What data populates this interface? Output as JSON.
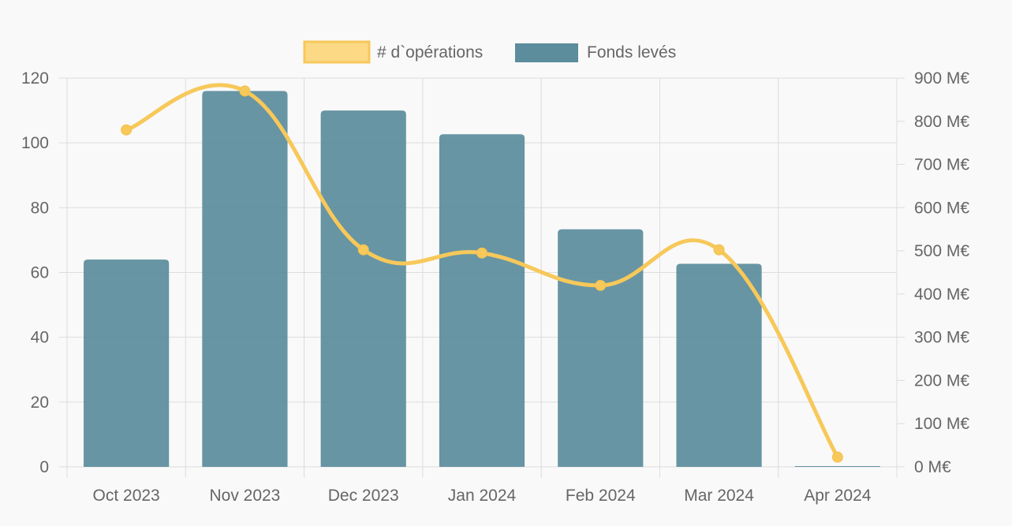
{
  "chart_data": {
    "type": "bar",
    "categories": [
      "Oct 2023",
      "Nov 2023",
      "Dec 2023",
      "Jan 2024",
      "Feb 2024",
      "Mar 2024",
      "Apr 2024"
    ],
    "series": [
      {
        "name": "# d`opérations",
        "type": "line",
        "axis": "left",
        "color": "#f7c85a",
        "values": [
          104,
          116,
          67,
          66,
          56,
          67,
          3
        ]
      },
      {
        "name": "Fonds levés",
        "type": "bar",
        "axis": "right",
        "color": "#5b8d9c",
        "values": [
          480,
          870,
          825,
          770,
          550,
          470,
          1
        ]
      }
    ],
    "y_left": {
      "ylim": [
        0,
        120
      ],
      "ticks": [
        "0",
        "20",
        "40",
        "60",
        "80",
        "100",
        "120"
      ]
    },
    "y_right": {
      "ylim": [
        0,
        900
      ],
      "ticks": [
        "0 M€",
        "100 M€",
        "200 M€",
        "300 M€",
        "400 M€",
        "500 M€",
        "600 M€",
        "700 M€",
        "800 M€",
        "900 M€"
      ]
    },
    "legend_position": "top",
    "grid": true
  }
}
